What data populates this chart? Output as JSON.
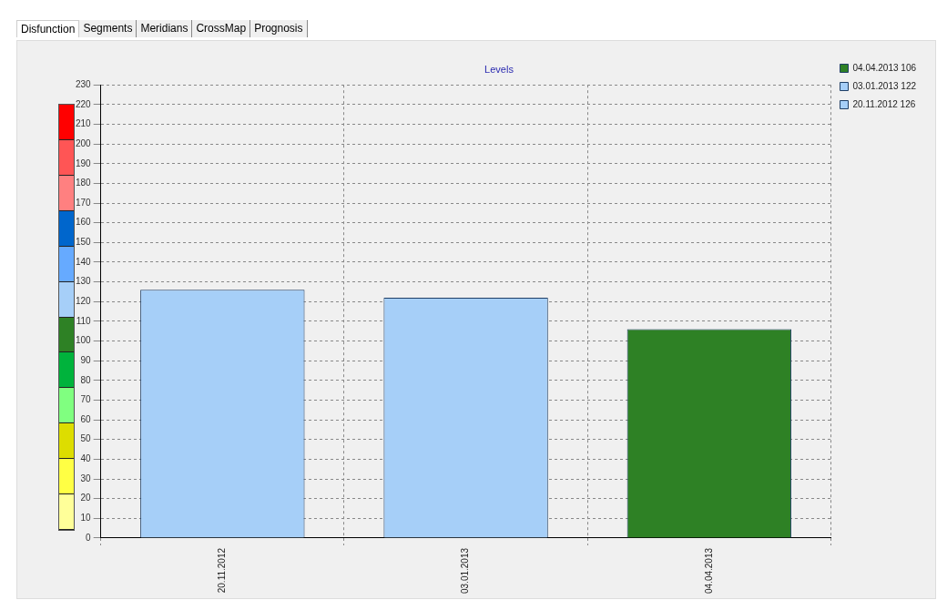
{
  "chart_data": {
    "type": "bar",
    "title": "Levels",
    "categories": [
      "20.11.2012",
      "03.01.2013",
      "04.04.2013"
    ],
    "series": [
      {
        "name": "20.11.2012 126",
        "color": "#a6cff8",
        "values": [
          126,
          null,
          null
        ]
      },
      {
        "name": "03.01.2013 122",
        "color": "#a6cff8",
        "values": [
          null,
          122,
          null
        ]
      },
      {
        "name": "04.04.2013 106",
        "color": "#2e8125",
        "values": [
          null,
          null,
          106
        ]
      }
    ],
    "ylim": [
      0,
      230
    ],
    "yticks": [
      0,
      10,
      20,
      30,
      40,
      50,
      60,
      70,
      80,
      90,
      100,
      110,
      120,
      130,
      140,
      150,
      160,
      170,
      180,
      190,
      200,
      210,
      220,
      230
    ],
    "grid": true,
    "legend": "top right",
    "annotations": [
      "Disfunction",
      "Segments",
      "Meridians",
      "CrossMap",
      "Prognosis"
    ]
  }
}
